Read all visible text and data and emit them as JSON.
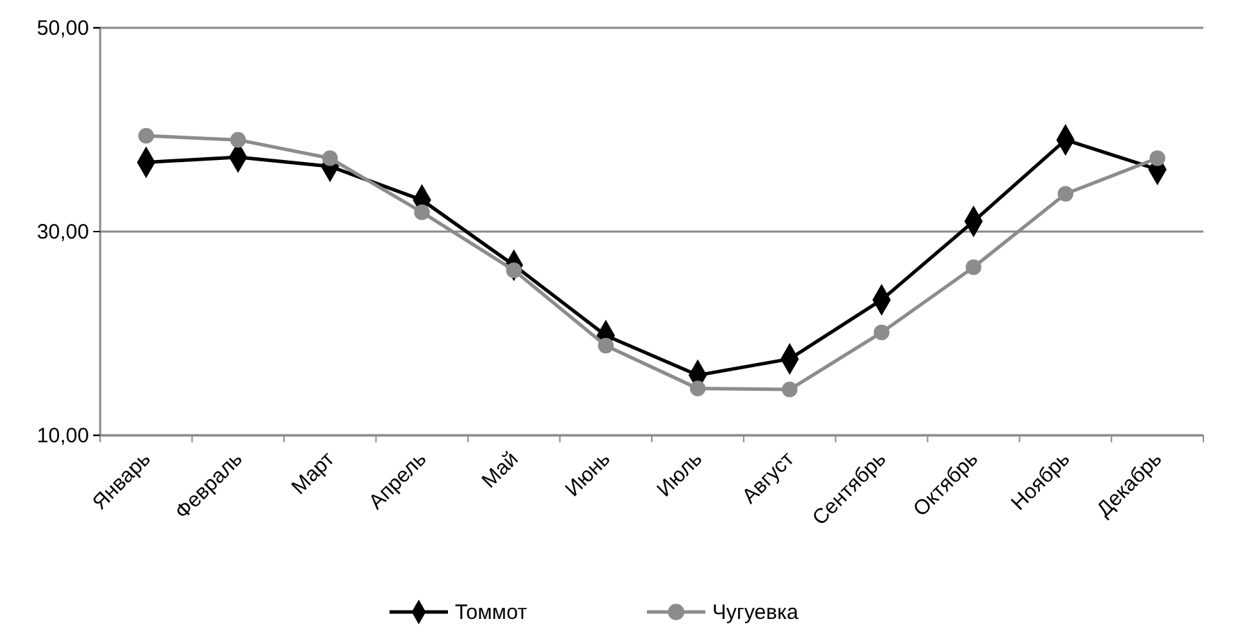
{
  "chart_data": {
    "type": "line",
    "categories": [
      "Январь",
      "Февраль",
      "Март",
      "Апрель",
      "Май",
      "Июнь",
      "Июль",
      "Август",
      "Сентябрь",
      "Октябрь",
      "Ноябрь",
      "Декабрь"
    ],
    "series": [
      {
        "name": "Томмот",
        "color": "#000000",
        "marker": "diamond",
        "values": [
          36.8,
          37.3,
          36.4,
          33.1,
          26.7,
          19.8,
          15.9,
          17.5,
          23.3,
          31.0,
          39.0,
          36.1
        ]
      },
      {
        "name": "Чугуевка",
        "color": "#8c8c8c",
        "marker": "circle",
        "values": [
          39.4,
          39.0,
          37.2,
          31.9,
          26.2,
          18.8,
          14.6,
          14.5,
          20.1,
          26.5,
          33.7,
          37.2
        ]
      }
    ],
    "ylim": [
      10,
      50
    ],
    "yticks": [
      {
        "value": 10,
        "label": "10,00"
      },
      {
        "value": 30,
        "label": "30,00"
      },
      {
        "value": 50,
        "label": "50,00"
      }
    ],
    "grid": "y",
    "legend": "bottom",
    "line_style": "solid"
  }
}
